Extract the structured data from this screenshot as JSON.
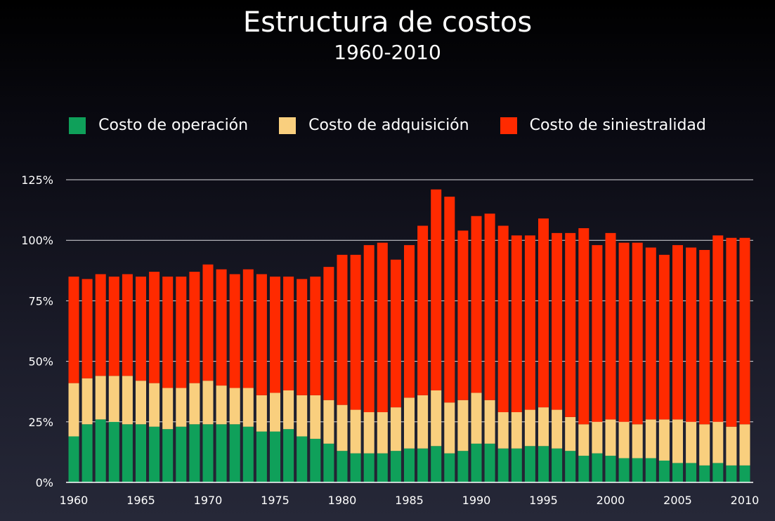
{
  "chart_data": {
    "type": "bar",
    "stacked": true,
    "title": "Estructura de costos",
    "subtitle": "1960-2010",
    "legend_placement": "top",
    "grid": true,
    "ylim": [
      0,
      125
    ],
    "y_ticks": [
      "0%",
      "25%",
      "50%",
      "75%",
      "100%",
      "125%"
    ],
    "x_ticks": [
      "1960",
      "1965",
      "1970",
      "1975",
      "1980",
      "1985",
      "1990",
      "1995",
      "2000",
      "2005",
      "2010"
    ],
    "categories": [
      "1960",
      "1961",
      "1962",
      "1963",
      "1964",
      "1965",
      "1966",
      "1967",
      "1968",
      "1969",
      "1970",
      "1971",
      "1972",
      "1973",
      "1974",
      "1975",
      "1976",
      "1977",
      "1978",
      "1979",
      "1980",
      "1981",
      "1982",
      "1983",
      "1984",
      "1985",
      "1986",
      "1987",
      "1988",
      "1989",
      "1990",
      "1991",
      "1992",
      "1993",
      "1994",
      "1995",
      "1996",
      "1997",
      "1998",
      "1999",
      "2000",
      "2001",
      "2002",
      "2003",
      "2004",
      "2005",
      "2006",
      "2007",
      "2008",
      "2009",
      "2010"
    ],
    "series": [
      {
        "name": "Costo de operación",
        "color": "#0fa05a",
        "values": [
          19,
          24,
          26,
          25,
          24,
          24,
          23,
          22,
          23,
          24,
          24,
          24,
          24,
          23,
          21,
          21,
          22,
          19,
          18,
          16,
          13,
          12,
          12,
          12,
          13,
          14,
          14,
          15,
          12,
          13,
          16,
          16,
          14,
          14,
          15,
          15,
          14,
          13,
          11,
          12,
          11,
          10,
          10,
          10,
          9,
          8,
          8,
          7,
          8,
          7,
          7
        ]
      },
      {
        "name": "Costo de adquisición",
        "color": "#f9cf7e",
        "values": [
          22,
          19,
          18,
          19,
          20,
          18,
          18,
          17,
          16,
          17,
          18,
          16,
          15,
          16,
          15,
          16,
          16,
          17,
          18,
          18,
          19,
          18,
          17,
          17,
          18,
          21,
          22,
          23,
          21,
          21,
          21,
          18,
          15,
          15,
          15,
          16,
          16,
          14,
          13,
          13,
          15,
          15,
          14,
          16,
          17,
          18,
          17,
          17,
          17,
          16,
          17
        ]
      },
      {
        "name": "Costo de siniestralidad",
        "color": "#ff2a00",
        "values": [
          44,
          41,
          42,
          41,
          42,
          43,
          46,
          46,
          46,
          46,
          48,
          48,
          47,
          49,
          50,
          48,
          47,
          48,
          49,
          55,
          62,
          64,
          69,
          70,
          61,
          63,
          70,
          83,
          85,
          70,
          73,
          77,
          77,
          73,
          72,
          78,
          73,
          76,
          81,
          73,
          77,
          74,
          75,
          71,
          68,
          72,
          72,
          72,
          77,
          78,
          77
        ]
      }
    ]
  }
}
